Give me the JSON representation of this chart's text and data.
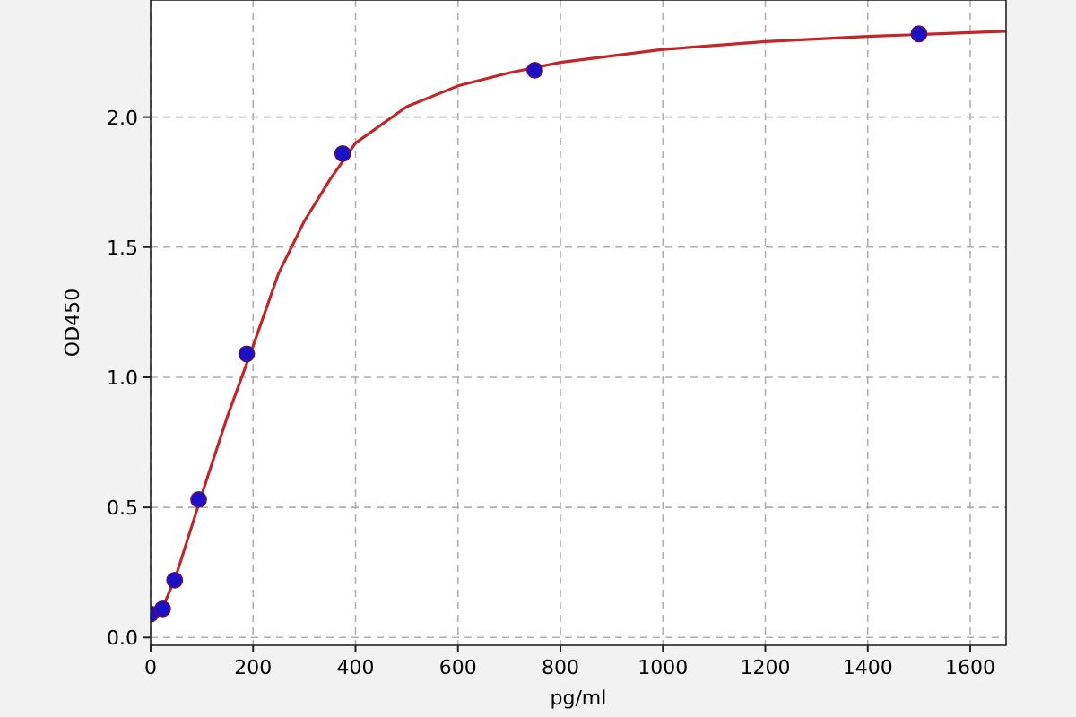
{
  "chart_data": {
    "type": "scatter",
    "xlabel": "pg/ml",
    "ylabel": "OD450",
    "xlim": [
      0,
      1670
    ],
    "ylim": [
      -0.03,
      2.45
    ],
    "xticks": [
      0,
      200,
      400,
      600,
      800,
      1000,
      1200,
      1400,
      1600
    ],
    "yticks": [
      {
        "value": 0,
        "label": "0.0"
      },
      0.5,
      {
        "value": 1,
        "label": "1.0"
      },
      1.5,
      {
        "value": 2,
        "label": "2.0"
      }
    ],
    "grid": true,
    "series": [
      {
        "type": "line",
        "color": "#c0262a",
        "marker": "none",
        "line_style": "solid",
        "x": [
          0,
          25,
          50,
          100,
          150,
          200,
          250,
          300,
          350,
          400,
          500,
          600,
          700,
          800,
          1000,
          1200,
          1400,
          1670
        ],
        "values": [
          0.08,
          0.12,
          0.24,
          0.55,
          0.85,
          1.12,
          1.4,
          1.6,
          1.76,
          1.9,
          2.04,
          2.12,
          2.17,
          2.21,
          2.26,
          2.29,
          2.31,
          2.33
        ]
      },
      {
        "color": "#1a10c8",
        "marker": "circle",
        "x": [
          0,
          23.4,
          46.9,
          93.75,
          187.5,
          375,
          750,
          1500
        ],
        "values": [
          0.09,
          0.11,
          0.22,
          0.53,
          1.09,
          1.86,
          2.18,
          2.32
        ]
      }
    ]
  }
}
